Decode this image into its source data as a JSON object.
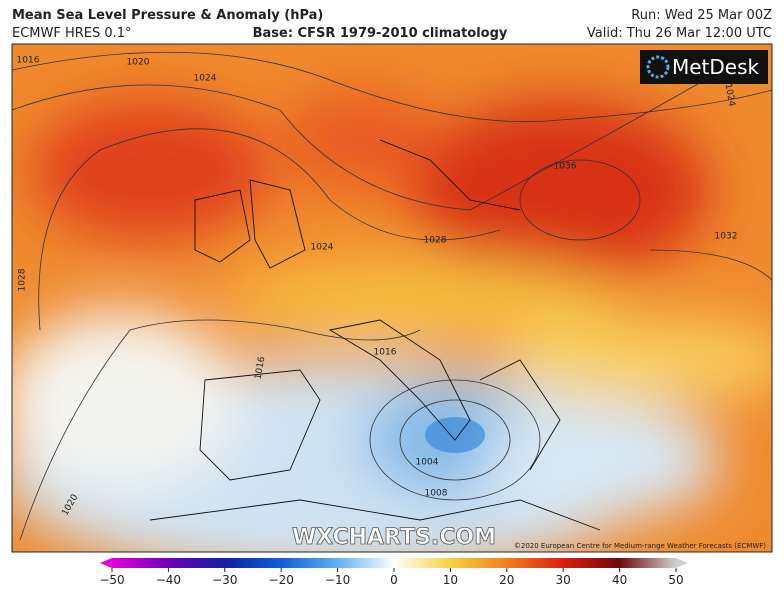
{
  "header": {
    "title": "Mean Sea Level Pressure & Anomaly (hPa)",
    "model": "ECMWF HRES 0.1°",
    "base": "Base: CFSR 1979-2010 climatology",
    "run": "Run: Wed 25 Mar 00Z",
    "valid": "Valid: Thu 26 Mar 12:00 UTC"
  },
  "logo": "MetDesk",
  "watermark": "WXCHARTS.COM",
  "copyright": "©2020 European Centre for Medium-range Weather Forecasts (ECMWF)",
  "isobar_labels": [
    "1016",
    "1020",
    "1024",
    "1036",
    "1032",
    "1028",
    "1024",
    "1028",
    "1016",
    "1016",
    "1008",
    "1004",
    "1020",
    "1024"
  ],
  "colorbar": {
    "lim": [
      -50,
      50
    ],
    "ticks": [
      {
        "value": -50,
        "label": "−50"
      },
      {
        "value": -40,
        "label": "−40"
      },
      {
        "value": -30,
        "label": "−30"
      },
      {
        "value": -20,
        "label": "−20"
      },
      {
        "value": -10,
        "label": "−10"
      },
      0,
      10,
      20,
      30,
      40,
      50
    ]
  }
}
